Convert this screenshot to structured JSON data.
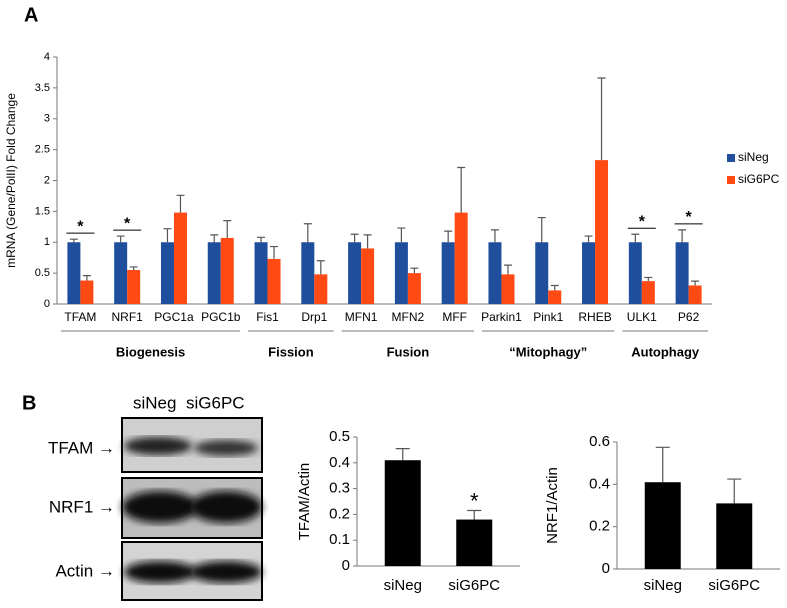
{
  "panel_labels": [
    "A",
    "B"
  ],
  "blot": {
    "lanes": [
      "siNeg",
      "siG6PC"
    ],
    "rows": [
      "TFAM →",
      "NRF1 →",
      "Actin →"
    ]
  },
  "chart_data": [
    {
      "type": "bar",
      "ylabel": "mRNA (Gene/PolII) Fold Change",
      "categories": [
        "TFAM",
        "NRF1",
        "PGC1a",
        "PGC1b",
        "Fis1",
        "Drp1",
        "MFN1",
        "MFN2",
        "MFF",
        "Parkin1",
        "Pink1",
        "RHEB",
        "ULK1",
        "P62"
      ],
      "series": [
        {
          "name": "siNeg",
          "color": "#1f4e9c",
          "values": [
            1,
            1,
            1,
            1,
            1,
            1,
            1,
            1,
            1,
            1,
            1,
            1,
            1,
            1
          ],
          "errors": [
            0.05,
            0.1,
            0.22,
            0.12,
            0.08,
            0.3,
            0.13,
            0.23,
            0.18,
            0.2,
            0.4,
            0.1,
            0.13,
            0.2
          ]
        },
        {
          "name": "siG6PC",
          "color": "#ff4a14",
          "values": [
            0.38,
            0.55,
            1.48,
            1.07,
            0.73,
            0.48,
            0.9,
            0.5,
            1.48,
            0.48,
            0.22,
            2.33,
            0.37,
            0.3
          ],
          "errors": [
            0.08,
            0.05,
            0.28,
            0.28,
            0.2,
            0.22,
            0.22,
            0.08,
            0.73,
            0.15,
            0.08,
            1.33,
            0.06,
            0.07
          ]
        }
      ],
      "ylim": [
        0,
        4
      ],
      "yticks": [
        0,
        0.5,
        1,
        1.5,
        2,
        2.5,
        3,
        3.5,
        4
      ],
      "legend": "right",
      "groups": [
        {
          "label": "Biogenesis",
          "count": 4
        },
        {
          "label": "Fission",
          "count": 2
        },
        {
          "label": "Fusion",
          "count": 3
        },
        {
          "label": "“Mitophagy”",
          "count": 3
        },
        {
          "label": "Autophagy",
          "count": 2
        }
      ],
      "annotations": [
        {
          "label": "*",
          "category": 0
        },
        {
          "label": "*",
          "category": 1
        },
        {
          "label": "*",
          "category": 12
        },
        {
          "label": "*",
          "category": 13
        }
      ]
    },
    {
      "type": "bar",
      "ylabel": "TFAM/Actin",
      "categories": [
        "siNeg",
        "siG6PC"
      ],
      "values": [
        0.41,
        0.18
      ],
      "errors": [
        0.045,
        0.035
      ],
      "color": "#000000",
      "ylim": [
        0,
        0.5
      ],
      "yticks": [
        0,
        0.1,
        0.2,
        0.3,
        0.4,
        0.5
      ],
      "annotations": [
        {
          "label": "*",
          "category": 1
        }
      ]
    },
    {
      "type": "bar",
      "ylabel": "NRF1/Actin",
      "categories": [
        "siNeg",
        "siG6PC"
      ],
      "values": [
        0.41,
        0.31
      ],
      "errors": [
        0.165,
        0.115
      ],
      "color": "#000000",
      "ylim": [
        0,
        0.6
      ],
      "yticks": [
        0,
        0.2,
        0.4,
        0.6
      ]
    }
  ]
}
